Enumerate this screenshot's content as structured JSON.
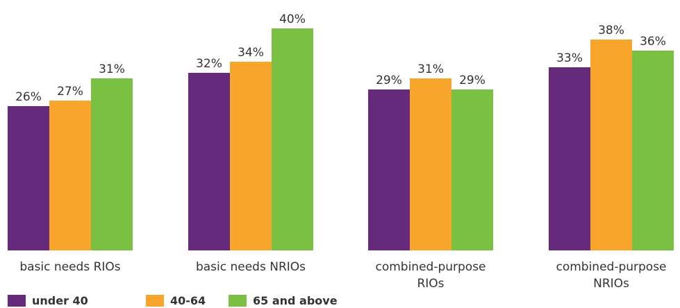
{
  "chart_data": {
    "type": "bar",
    "title": "",
    "xlabel": "",
    "ylabel": "",
    "ylim": [
      0,
      40
    ],
    "grid": false,
    "legend_position": "bottom-left",
    "categories": [
      [
        "basic needs RIOs"
      ],
      [
        "basic needs NRIOs"
      ],
      [
        "combined-purpose",
        "RIOs"
      ],
      [
        "combined-purpose",
        "NRIOs"
      ]
    ],
    "series": [
      {
        "name": "under 40",
        "color": "#662a7c",
        "values": [
          26,
          32,
          29,
          33
        ],
        "labels": [
          "26%",
          "32%",
          "29%",
          "33%"
        ]
      },
      {
        "name": "40-64",
        "color": "#f7a62b",
        "values": [
          27,
          34,
          31,
          38
        ],
        "labels": [
          "27%",
          "34%",
          "31%",
          "38%"
        ]
      },
      {
        "name": "65 and above",
        "color": "#7ac143",
        "values": [
          31,
          40,
          29,
          36
        ],
        "labels": [
          "31%",
          "40%",
          "29%",
          "36%"
        ]
      }
    ]
  }
}
